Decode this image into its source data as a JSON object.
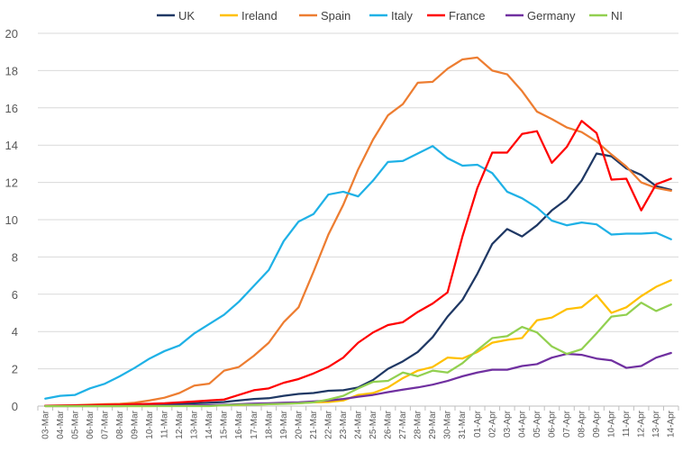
{
  "chart_data": {
    "type": "line",
    "title": "",
    "xlabel": "",
    "ylabel": "",
    "ylim": [
      0,
      20
    ],
    "yticks": [
      0,
      2,
      4,
      6,
      8,
      10,
      12,
      14,
      16,
      18,
      20
    ],
    "grid": "horizontal",
    "legend_position": "top",
    "categories": [
      "03-Mar",
      "04-Mar",
      "05-Mar",
      "06-Mar",
      "07-Mar",
      "08-Mar",
      "09-Mar",
      "10-Mar",
      "11-Mar",
      "12-Mar",
      "13-Mar",
      "14-Mar",
      "15-Mar",
      "16-Mar",
      "17-Mar",
      "18-Mar",
      "19-Mar",
      "20-Mar",
      "21-Mar",
      "22-Mar",
      "23-Mar",
      "24-Mar",
      "25-Mar",
      "26-Mar",
      "27-Mar",
      "28-Mar",
      "29-Mar",
      "30-Mar",
      "31-Mar",
      "01-Apr",
      "02-Apr",
      "03-Apr",
      "04-Apr",
      "05-Apr",
      "06-Apr",
      "07-Apr",
      "08-Apr",
      "09-Apr",
      "10-Apr",
      "11-Apr",
      "12-Apr",
      "13-Apr",
      "14-Apr"
    ],
    "series": [
      {
        "name": "UK",
        "color": "#1f3864",
        "values": [
          0.01,
          0.01,
          0.02,
          0.02,
          0.03,
          0.04,
          0.06,
          0.08,
          0.1,
          0.12,
          0.15,
          0.18,
          0.22,
          0.3,
          0.38,
          0.42,
          0.55,
          0.65,
          0.7,
          0.82,
          0.85,
          1.0,
          1.4,
          2.0,
          2.4,
          2.9,
          3.7,
          4.8,
          5.7,
          7.1,
          8.7,
          9.5,
          9.1,
          9.7,
          10.5,
          11.1,
          12.1,
          13.55,
          13.4,
          12.75,
          12.4,
          11.8,
          11.6
        ]
      },
      {
        "name": "Ireland",
        "color": "#ffc000",
        "values": [
          0,
          0,
          0,
          0,
          0,
          0,
          0,
          0,
          0.01,
          0.02,
          0.03,
          0.04,
          0.05,
          0.06,
          0.08,
          0.1,
          0.13,
          0.16,
          0.2,
          0.22,
          0.3,
          0.6,
          0.7,
          1.0,
          1.5,
          1.9,
          2.1,
          2.6,
          2.55,
          2.9,
          3.4,
          3.55,
          3.65,
          4.6,
          4.75,
          5.2,
          5.3,
          5.95,
          5.0,
          5.3,
          5.9,
          6.4,
          6.75
        ]
      },
      {
        "name": "Spain",
        "color": "#ed7d31",
        "values": [
          0.02,
          0.03,
          0.05,
          0.08,
          0.1,
          0.12,
          0.18,
          0.3,
          0.45,
          0.7,
          1.1,
          1.2,
          1.9,
          2.1,
          2.7,
          3.4,
          4.5,
          5.3,
          7.2,
          9.2,
          10.8,
          12.7,
          14.3,
          15.6,
          16.2,
          17.35,
          17.4,
          18.1,
          18.6,
          18.7,
          18.0,
          17.8,
          16.9,
          15.8,
          15.4,
          14.95,
          14.7,
          14.2,
          13.5,
          12.85,
          12.0,
          11.7,
          11.55
        ]
      },
      {
        "name": "Italy",
        "color": "#1fb1e6",
        "values": [
          0.4,
          0.55,
          0.6,
          0.95,
          1.2,
          1.6,
          2.05,
          2.55,
          2.95,
          3.25,
          3.9,
          4.4,
          4.9,
          5.6,
          6.45,
          7.3,
          8.85,
          9.9,
          10.3,
          11.35,
          11.5,
          11.25,
          12.1,
          13.1,
          13.15,
          13.55,
          13.95,
          13.3,
          12.9,
          12.95,
          12.5,
          11.5,
          11.15,
          10.65,
          9.95,
          9.7,
          9.85,
          9.75,
          9.2,
          9.25,
          9.25,
          9.3,
          8.95
        ]
      },
      {
        "name": "France",
        "color": "#ff0000",
        "values": [
          0.02,
          0.03,
          0.04,
          0.05,
          0.07,
          0.08,
          0.1,
          0.12,
          0.15,
          0.2,
          0.25,
          0.3,
          0.35,
          0.6,
          0.85,
          0.95,
          1.25,
          1.45,
          1.75,
          2.1,
          2.6,
          3.4,
          3.95,
          4.35,
          4.5,
          5.05,
          5.5,
          6.1,
          9.1,
          11.7,
          13.6,
          13.6,
          14.6,
          14.75,
          13.05,
          13.9,
          15.3,
          14.65,
          12.15,
          12.2,
          10.5,
          11.9,
          12.2
        ]
      },
      {
        "name": "Germany",
        "color": "#7030a0",
        "values": [
          0,
          0,
          0,
          0,
          0,
          0,
          0.01,
          0.01,
          0.02,
          0.03,
          0.04,
          0.05,
          0.07,
          0.1,
          0.13,
          0.15,
          0.18,
          0.2,
          0.25,
          0.3,
          0.38,
          0.5,
          0.6,
          0.75,
          0.88,
          1.0,
          1.15,
          1.35,
          1.6,
          1.8,
          1.95,
          1.95,
          2.15,
          2.25,
          2.6,
          2.8,
          2.75,
          2.55,
          2.45,
          2.05,
          2.15,
          2.6,
          2.85
        ]
      },
      {
        "name": "NI",
        "color": "#92d050",
        "values": [
          0,
          0,
          0,
          0,
          0,
          0,
          0,
          0,
          0,
          0,
          0,
          0,
          0.05,
          0.07,
          0.08,
          0.1,
          0.12,
          0.15,
          0.2,
          0.35,
          0.55,
          0.95,
          1.3,
          1.35,
          1.8,
          1.6,
          1.9,
          1.8,
          2.3,
          3.0,
          3.65,
          3.75,
          4.25,
          3.95,
          3.2,
          2.8,
          3.05,
          3.9,
          4.8,
          4.9,
          5.55,
          5.1,
          5.45
        ]
      }
    ]
  }
}
